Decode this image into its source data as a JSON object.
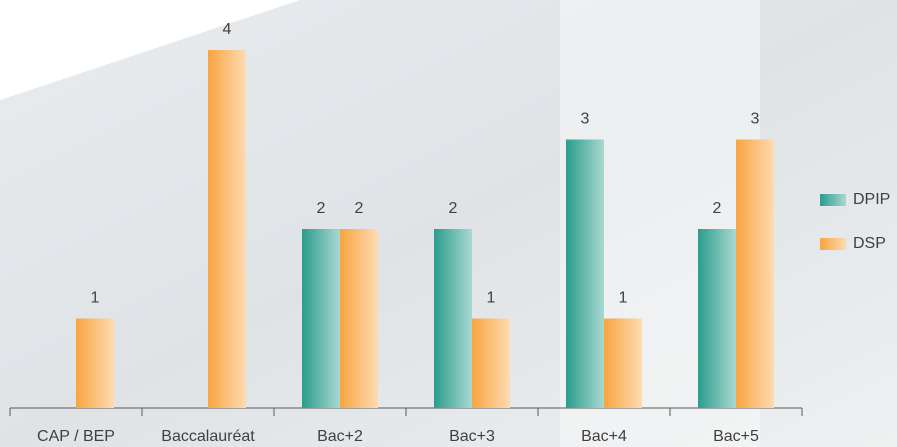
{
  "chart_data": {
    "type": "bar",
    "categories": [
      "CAP / BEP",
      "Baccalauréat",
      "Bac+2",
      "Bac+3",
      "Bac+4",
      "Bac+5"
    ],
    "series": [
      {
        "name": "DPIP",
        "color": "#2a9d8c",
        "values": [
          null,
          null,
          2,
          2,
          3,
          2
        ]
      },
      {
        "name": "DSP",
        "color": "#f7a540",
        "values": [
          1,
          4,
          2,
          1,
          1,
          3
        ]
      }
    ],
    "ylim": [
      0,
      4
    ],
    "legend": "right"
  }
}
